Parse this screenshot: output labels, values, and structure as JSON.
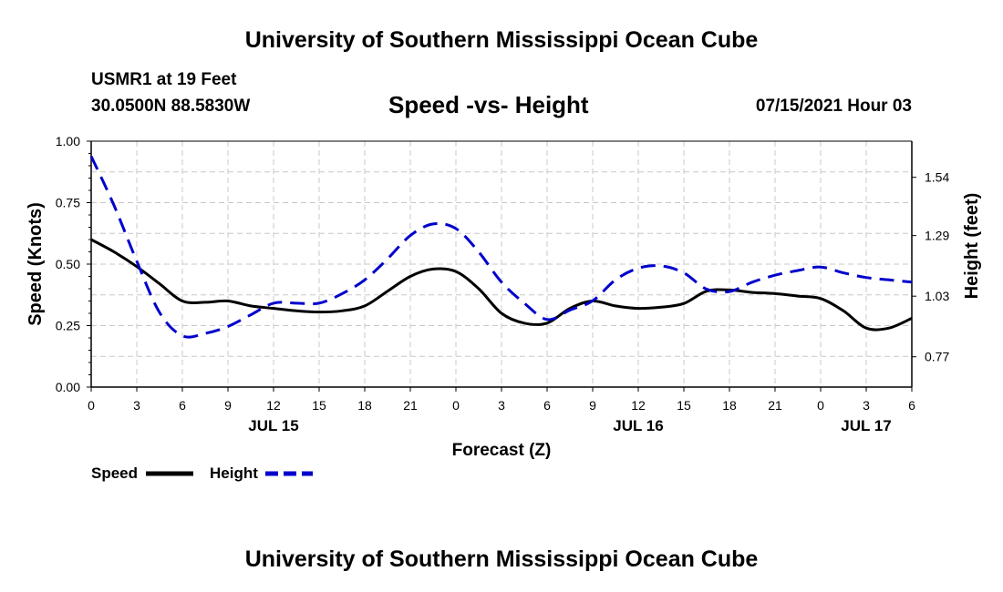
{
  "header": {
    "title": "University of Southern Mississippi Ocean Cube",
    "station": "USMR1 at 19 Feet",
    "coords": "30.0500N  88.5830W",
    "chart_title": "Speed -vs- Height",
    "datetime": "07/15/2021 Hour 03"
  },
  "footer": {
    "title": "University of Southern Mississippi Ocean Cube"
  },
  "colors": {
    "speed": "#000000",
    "height": "#0000cc",
    "grid": "#c8c8c8"
  },
  "chart_data": {
    "type": "line",
    "title": "Speed -vs- Height",
    "xlabel": "Forecast (Z)",
    "ylabel": "Speed (Knots)",
    "y2label": "Height (feet)",
    "xlim": [
      0,
      54
    ],
    "ylim": [
      0,
      1.0
    ],
    "y2lim": [
      0.64,
      1.695
    ],
    "x_ticks": [
      0,
      3,
      6,
      9,
      12,
      15,
      18,
      21,
      24,
      27,
      30,
      33,
      36,
      39,
      42,
      45,
      48,
      51,
      54
    ],
    "x_tick_labels": [
      "0",
      "3",
      "6",
      "9",
      "12",
      "15",
      "18",
      "21",
      "0",
      "3",
      "6",
      "9",
      "12",
      "15",
      "18",
      "21",
      "0",
      "3",
      "6"
    ],
    "date_labels": [
      {
        "x": 12,
        "label": "JUL 15"
      },
      {
        "x": 36,
        "label": "JUL 16"
      },
      {
        "x": 51,
        "label": "JUL 17"
      }
    ],
    "y_ticks": [
      0.0,
      0.25,
      0.5,
      0.75,
      1.0
    ],
    "y_tick_labels": [
      "0.00",
      "0.25",
      "0.50",
      "0.75",
      "1.00"
    ],
    "y2_ticks": [
      0.77,
      1.03,
      1.29,
      1.54
    ],
    "y2_tick_labels": [
      "0.77",
      "1.03",
      "1.29",
      "1.54"
    ],
    "series": [
      {
        "name": "Speed",
        "axis": "left",
        "style": "solid",
        "x": [
          0,
          1.5,
          3,
          4.5,
          6,
          7.5,
          9,
          10.5,
          12,
          13.5,
          15,
          16.5,
          18,
          19.5,
          21,
          22.5,
          24,
          25.5,
          27,
          28.5,
          30,
          31.5,
          33,
          34.5,
          36,
          37.5,
          39,
          40.5,
          42,
          43.5,
          45,
          46.5,
          48,
          49.5,
          51,
          52.5,
          54
        ],
        "values": [
          0.6,
          0.55,
          0.49,
          0.42,
          0.35,
          0.345,
          0.35,
          0.33,
          0.32,
          0.31,
          0.305,
          0.31,
          0.33,
          0.39,
          0.45,
          0.48,
          0.47,
          0.4,
          0.3,
          0.26,
          0.26,
          0.32,
          0.35,
          0.33,
          0.32,
          0.325,
          0.34,
          0.39,
          0.395,
          0.385,
          0.38,
          0.37,
          0.36,
          0.31,
          0.24,
          0.24,
          0.28
        ]
      },
      {
        "name": "Height",
        "axis": "right",
        "style": "dashed",
        "x": [
          0,
          1.5,
          3,
          4.5,
          6,
          7.5,
          9,
          10.5,
          12,
          13.5,
          15,
          16.5,
          18,
          19.5,
          21,
          22.5,
          24,
          25.5,
          27,
          28.5,
          30,
          31.5,
          33,
          34.5,
          36,
          37.5,
          39,
          40.5,
          42,
          43.5,
          45,
          46.5,
          48,
          49.5,
          51,
          52.5,
          54
        ],
        "values": [
          1.63,
          1.42,
          1.18,
          0.96,
          0.86,
          0.87,
          0.9,
          0.95,
          1.0,
          1.0,
          1.0,
          1.04,
          1.1,
          1.19,
          1.29,
          1.34,
          1.32,
          1.22,
          1.09,
          1.0,
          0.93,
          0.97,
          1.01,
          1.1,
          1.15,
          1.16,
          1.13,
          1.06,
          1.05,
          1.09,
          1.12,
          1.14,
          1.155,
          1.13,
          1.11,
          1.1,
          1.09
        ]
      }
    ],
    "legend": [
      "Speed",
      "Height"
    ]
  }
}
